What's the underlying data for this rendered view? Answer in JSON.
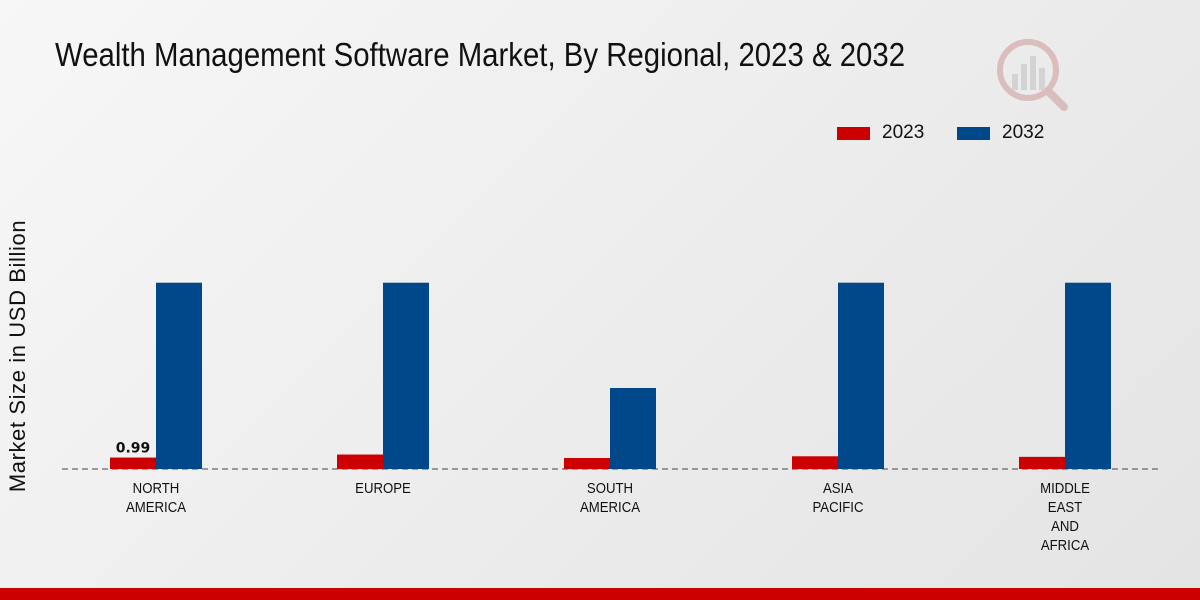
{
  "chart_data": {
    "type": "bar",
    "title": "Wealth Management Software Market, By Regional, 2023 & 2032",
    "xlabel": "",
    "ylabel": "Market Size in USD Billion",
    "categories": [
      [
        "NORTH",
        "AMERICA"
      ],
      [
        "EUROPE"
      ],
      [
        "SOUTH",
        "AMERICA"
      ],
      [
        "ASIA",
        "PACIFIC"
      ],
      [
        "MIDDLE",
        "EAST",
        "AND",
        "AFRICA"
      ]
    ],
    "series": [
      {
        "name": "2023",
        "color": "#cc0000",
        "values": [
          0.99,
          1.25,
          0.95,
          1.1,
          1.05
        ]
      },
      {
        "name": "2032",
        "color": "#00488a",
        "values": [
          16.1,
          16.1,
          7.0,
          16.1,
          16.1
        ]
      }
    ],
    "data_labels": [
      {
        "series": 0,
        "index": 0,
        "text": "0.99"
      }
    ],
    "ylim": [
      0,
      28
    ],
    "grid": false,
    "legend": "top-right"
  }
}
